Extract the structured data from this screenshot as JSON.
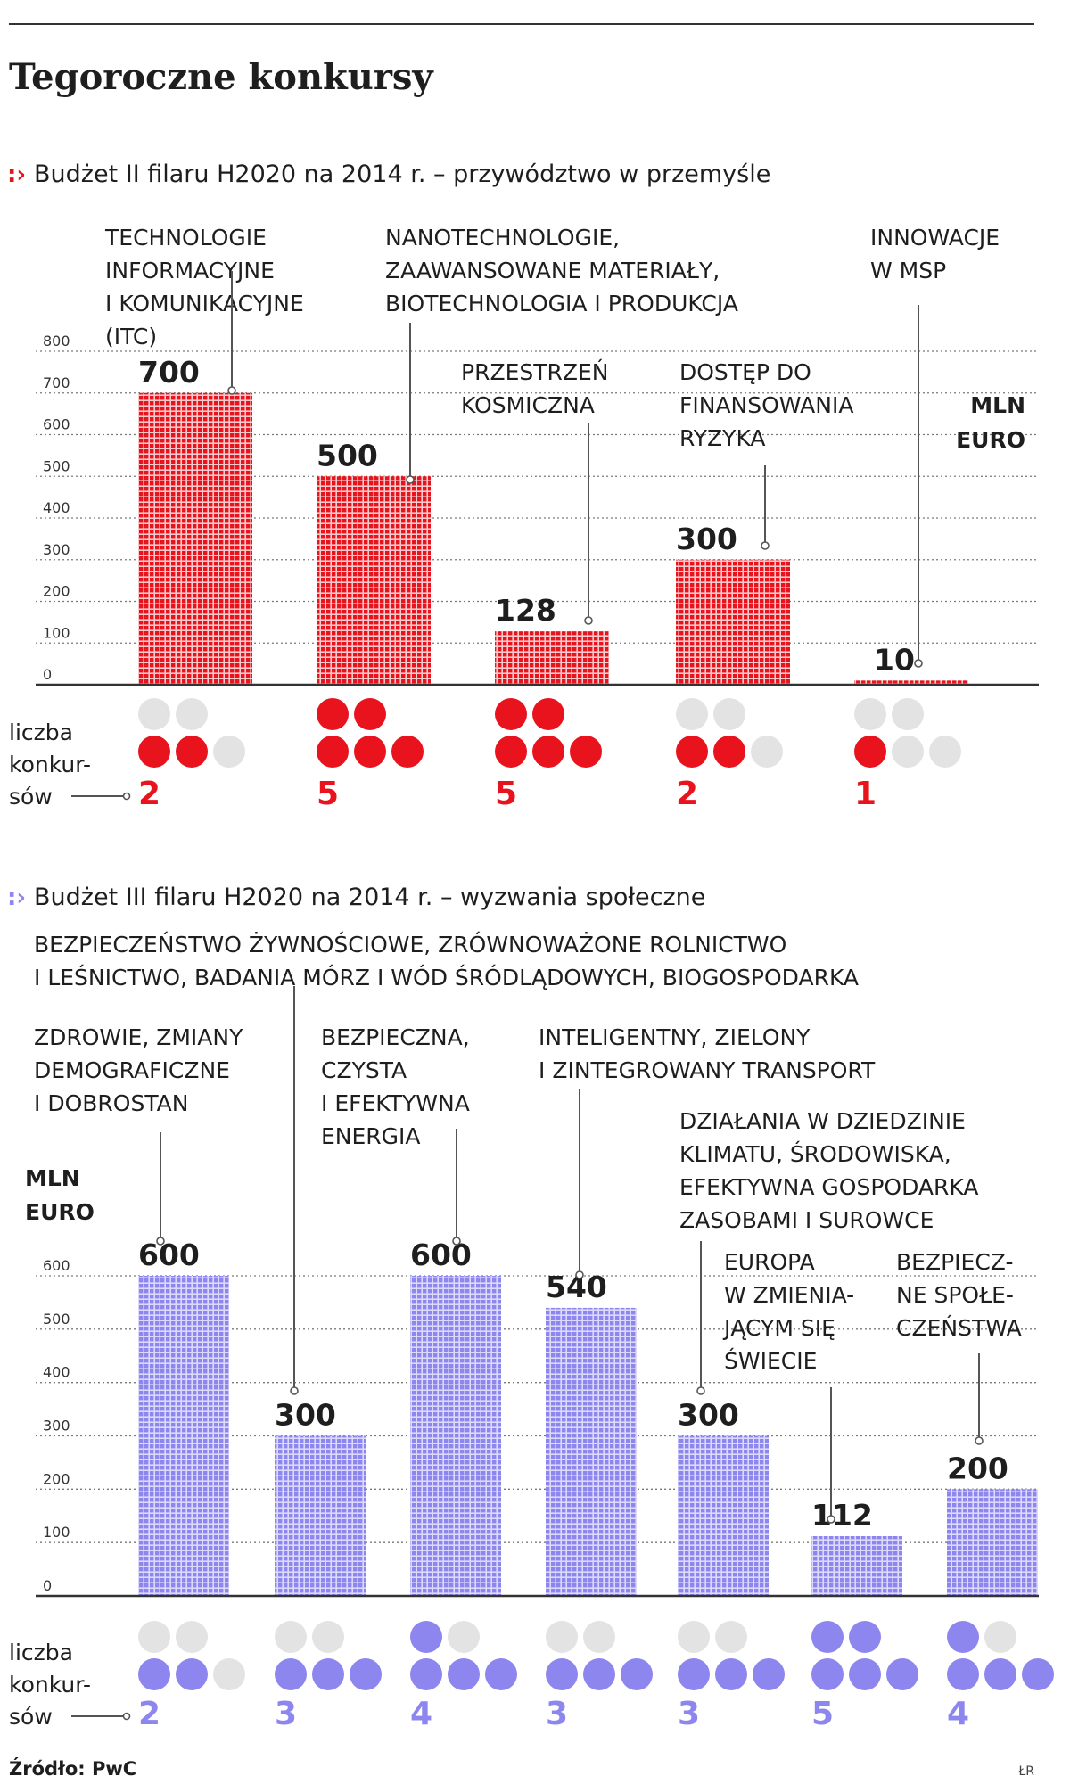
{
  "title": "Tegoroczne konkursy",
  "source": "Źródło: PwC",
  "signature": "ŁR",
  "colors": {
    "red": "#e8131c",
    "blue": "#8d86ee",
    "grey": "#e3e3e3",
    "text": "#1e1e1e"
  },
  "chart_data": [
    {
      "type": "bar",
      "subtitle": "Budżet II filaru H2020 na 2014 r. – przywództwo w przemyśle",
      "unit": [
        "MLN",
        "EURO"
      ],
      "ylim": [
        0,
        800
      ],
      "yticks": [
        "0",
        "100",
        "200",
        "300",
        "400",
        "500",
        "600",
        "700",
        "800"
      ],
      "grid": true,
      "color": "#e8131c",
      "count_label": [
        "liczba",
        "konkur-",
        "sów"
      ],
      "categories": [
        [
          "TECHNOLOGIE",
          "INFORMACYJNE",
          "I KOMUNIKACYJNE",
          "(ITC)"
        ],
        [
          "NANOTECHNOLOGIE,",
          "ZAAWANSOWANE MATERIAŁY,",
          "BIOTECHNOLOGIA I PRODUKCJA"
        ],
        [
          "PRZESTRZEŃ",
          "KOSMICZNA"
        ],
        [
          "DOSTĘP DO",
          "FINANSOWANIA",
          "RYZYKA"
        ],
        [
          "INNOWACJE",
          "W MSP"
        ]
      ],
      "values": [
        700,
        500,
        128,
        300,
        10
      ],
      "value_labels": [
        "700",
        "500",
        "128",
        "300",
        "10"
      ],
      "contests": [
        2,
        5,
        5,
        2,
        1
      ],
      "contest_labels": [
        "2",
        "5",
        "5",
        "2",
        "1"
      ]
    },
    {
      "type": "bar",
      "subtitle": "Budżet III filaru H2020 na 2014 r. – wyzwania społeczne",
      "unit": [
        "MLN",
        "EURO"
      ],
      "ylim": [
        0,
        600
      ],
      "yticks": [
        "0",
        "100",
        "200",
        "300",
        "400",
        "500",
        "600"
      ],
      "grid": true,
      "color": "#8d86ee",
      "count_label": [
        "liczba",
        "konkur-",
        "sów"
      ],
      "categories": [
        [
          "ZDROWIE, ZMIANY",
          "DEMOGRAFICZNE",
          "I DOBROSTAN"
        ],
        [
          "BEZPIECZEŃSTWO ŻYWNOŚCIOWE, ZRÓWNOWAŻONE ROLNICTWO",
          "I LEŚNICTWO, BADANIA MÓRZ I WÓD ŚRÓDLĄDOWYCH, BIOGOSPODARKA"
        ],
        [
          "BEZPIECZNA,",
          "CZYSTA",
          "I EFEKTYWNA",
          "ENERGIA"
        ],
        [
          "INTELIGENTNY, ZIELONY",
          "I ZINTEGROWANY TRANSPORT"
        ],
        [
          "DZIAŁANIA W DZIEDZINIE",
          "KLIMATU, ŚRODOWISKA,",
          "EFEKTYWNA GOSPODARKA",
          "ZASOBAMI I SUROWCE"
        ],
        [
          "EUROPA",
          "W ZMIENIA-",
          "JĄCYM SIĘ",
          "ŚWIECIE"
        ],
        [
          "BEZPIECZ-",
          "NE SPOŁE-",
          "CZEŃSTWA"
        ]
      ],
      "values": [
        600,
        300,
        600,
        540,
        300,
        112,
        200
      ],
      "value_labels": [
        "600",
        "300",
        "600",
        "540",
        "300",
        "112",
        "200"
      ],
      "contests": [
        2,
        3,
        4,
        3,
        3,
        5,
        4
      ],
      "contest_labels": [
        "2",
        "3",
        "4",
        "3",
        "3",
        "5",
        "4"
      ]
    }
  ]
}
